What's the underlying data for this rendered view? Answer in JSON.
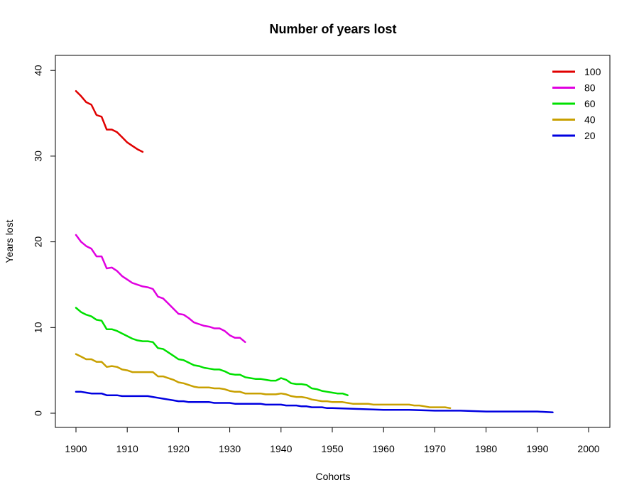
{
  "chart_data": {
    "type": "line",
    "title": "Number of years lost",
    "xlabel": "Cohorts",
    "ylabel": "Years lost",
    "xlim": [
      1900,
      2000
    ],
    "ylim": [
      0,
      40
    ],
    "x_ticks": [
      1900,
      1910,
      1920,
      1930,
      1940,
      1950,
      1960,
      1970,
      1980,
      1990,
      2000
    ],
    "y_ticks": [
      0,
      10,
      20,
      30,
      40
    ],
    "grid": false,
    "legend_position": "top-right",
    "series": [
      {
        "name": "100",
        "color": "#e00000",
        "points": [
          [
            1900,
            37.6
          ],
          [
            1901,
            37.0
          ],
          [
            1902,
            36.3
          ],
          [
            1903,
            36.0
          ],
          [
            1904,
            34.8
          ],
          [
            1905,
            34.6
          ],
          [
            1906,
            33.1
          ],
          [
            1907,
            33.1
          ],
          [
            1908,
            32.8
          ],
          [
            1909,
            32.2
          ],
          [
            1910,
            31.6
          ],
          [
            1911,
            31.2
          ],
          [
            1912,
            30.8
          ],
          [
            1913,
            30.5
          ]
        ]
      },
      {
        "name": "80",
        "color": "#e000e0",
        "points": [
          [
            1900,
            20.8
          ],
          [
            1901,
            20.0
          ],
          [
            1902,
            19.5
          ],
          [
            1903,
            19.2
          ],
          [
            1904,
            18.3
          ],
          [
            1905,
            18.3
          ],
          [
            1906,
            16.9
          ],
          [
            1907,
            17.0
          ],
          [
            1908,
            16.6
          ],
          [
            1909,
            16.0
          ],
          [
            1910,
            15.6
          ],
          [
            1911,
            15.2
          ],
          [
            1912,
            15.0
          ],
          [
            1913,
            14.8
          ],
          [
            1914,
            14.7
          ],
          [
            1915,
            14.5
          ],
          [
            1916,
            13.6
          ],
          [
            1917,
            13.4
          ],
          [
            1918,
            12.8
          ],
          [
            1919,
            12.2
          ],
          [
            1920,
            11.6
          ],
          [
            1921,
            11.5
          ],
          [
            1922,
            11.1
          ],
          [
            1923,
            10.6
          ],
          [
            1924,
            10.4
          ],
          [
            1925,
            10.2
          ],
          [
            1926,
            10.1
          ],
          [
            1927,
            9.9
          ],
          [
            1928,
            9.9
          ],
          [
            1929,
            9.6
          ],
          [
            1930,
            9.1
          ],
          [
            1931,
            8.8
          ],
          [
            1932,
            8.8
          ],
          [
            1933,
            8.3
          ]
        ]
      },
      {
        "name": "60",
        "color": "#00e000",
        "points": [
          [
            1900,
            12.3
          ],
          [
            1901,
            11.8
          ],
          [
            1902,
            11.5
          ],
          [
            1903,
            11.3
          ],
          [
            1904,
            10.9
          ],
          [
            1905,
            10.8
          ],
          [
            1906,
            9.8
          ],
          [
            1907,
            9.8
          ],
          [
            1908,
            9.6
          ],
          [
            1909,
            9.3
          ],
          [
            1910,
            9.0
          ],
          [
            1911,
            8.7
          ],
          [
            1912,
            8.5
          ],
          [
            1913,
            8.4
          ],
          [
            1914,
            8.4
          ],
          [
            1915,
            8.3
          ],
          [
            1916,
            7.6
          ],
          [
            1917,
            7.5
          ],
          [
            1918,
            7.1
          ],
          [
            1919,
            6.7
          ],
          [
            1920,
            6.3
          ],
          [
            1921,
            6.2
          ],
          [
            1922,
            5.9
          ],
          [
            1923,
            5.6
          ],
          [
            1924,
            5.5
          ],
          [
            1925,
            5.3
          ],
          [
            1926,
            5.2
          ],
          [
            1927,
            5.1
          ],
          [
            1928,
            5.1
          ],
          [
            1929,
            4.9
          ],
          [
            1930,
            4.6
          ],
          [
            1931,
            4.5
          ],
          [
            1932,
            4.5
          ],
          [
            1933,
            4.2
          ],
          [
            1934,
            4.1
          ],
          [
            1935,
            4.0
          ],
          [
            1936,
            4.0
          ],
          [
            1937,
            3.9
          ],
          [
            1938,
            3.8
          ],
          [
            1939,
            3.8
          ],
          [
            1940,
            4.1
          ],
          [
            1941,
            3.9
          ],
          [
            1942,
            3.5
          ],
          [
            1943,
            3.4
          ],
          [
            1944,
            3.4
          ],
          [
            1945,
            3.3
          ],
          [
            1946,
            2.9
          ],
          [
            1947,
            2.8
          ],
          [
            1948,
            2.6
          ],
          [
            1949,
            2.5
          ],
          [
            1950,
            2.4
          ],
          [
            1951,
            2.3
          ],
          [
            1952,
            2.3
          ],
          [
            1953,
            2.1
          ]
        ]
      },
      {
        "name": "40",
        "color": "#c8a000",
        "points": [
          [
            1900,
            6.9
          ],
          [
            1901,
            6.6
          ],
          [
            1902,
            6.3
          ],
          [
            1903,
            6.3
          ],
          [
            1904,
            6.0
          ],
          [
            1905,
            6.0
          ],
          [
            1906,
            5.4
          ],
          [
            1907,
            5.5
          ],
          [
            1908,
            5.4
          ],
          [
            1909,
            5.1
          ],
          [
            1910,
            5.0
          ],
          [
            1911,
            4.8
          ],
          [
            1912,
            4.8
          ],
          [
            1913,
            4.8
          ],
          [
            1914,
            4.8
          ],
          [
            1915,
            4.8
          ],
          [
            1916,
            4.3
          ],
          [
            1917,
            4.3
          ],
          [
            1918,
            4.1
          ],
          [
            1919,
            3.9
          ],
          [
            1920,
            3.6
          ],
          [
            1921,
            3.5
          ],
          [
            1922,
            3.3
          ],
          [
            1923,
            3.1
          ],
          [
            1924,
            3.0
          ],
          [
            1925,
            3.0
          ],
          [
            1926,
            3.0
          ],
          [
            1927,
            2.9
          ],
          [
            1928,
            2.9
          ],
          [
            1929,
            2.8
          ],
          [
            1930,
            2.6
          ],
          [
            1931,
            2.5
          ],
          [
            1932,
            2.5
          ],
          [
            1933,
            2.3
          ],
          [
            1934,
            2.3
          ],
          [
            1935,
            2.3
          ],
          [
            1936,
            2.3
          ],
          [
            1937,
            2.2
          ],
          [
            1938,
            2.2
          ],
          [
            1939,
            2.2
          ],
          [
            1940,
            2.3
          ],
          [
            1941,
            2.2
          ],
          [
            1942,
            2.0
          ],
          [
            1943,
            1.9
          ],
          [
            1944,
            1.9
          ],
          [
            1945,
            1.8
          ],
          [
            1946,
            1.6
          ],
          [
            1947,
            1.5
          ],
          [
            1948,
            1.4
          ],
          [
            1949,
            1.4
          ],
          [
            1950,
            1.3
          ],
          [
            1951,
            1.3
          ],
          [
            1952,
            1.3
          ],
          [
            1953,
            1.2
          ],
          [
            1954,
            1.1
          ],
          [
            1955,
            1.1
          ],
          [
            1956,
            1.1
          ],
          [
            1957,
            1.1
          ],
          [
            1958,
            1.0
          ],
          [
            1959,
            1.0
          ],
          [
            1960,
            1.0
          ],
          [
            1961,
            1.0
          ],
          [
            1962,
            1.0
          ],
          [
            1963,
            1.0
          ],
          [
            1964,
            1.0
          ],
          [
            1965,
            1.0
          ],
          [
            1966,
            0.9
          ],
          [
            1967,
            0.9
          ],
          [
            1968,
            0.8
          ],
          [
            1969,
            0.7
          ],
          [
            1970,
            0.7
          ],
          [
            1971,
            0.7
          ],
          [
            1972,
            0.7
          ],
          [
            1973,
            0.6
          ]
        ]
      },
      {
        "name": "20",
        "color": "#0000e0",
        "points": [
          [
            1900,
            2.5
          ],
          [
            1901,
            2.5
          ],
          [
            1902,
            2.4
          ],
          [
            1903,
            2.3
          ],
          [
            1904,
            2.3
          ],
          [
            1905,
            2.3
          ],
          [
            1906,
            2.1
          ],
          [
            1907,
            2.1
          ],
          [
            1908,
            2.1
          ],
          [
            1909,
            2.0
          ],
          [
            1910,
            2.0
          ],
          [
            1911,
            2.0
          ],
          [
            1912,
            2.0
          ],
          [
            1913,
            2.0
          ],
          [
            1914,
            2.0
          ],
          [
            1915,
            1.9
          ],
          [
            1916,
            1.8
          ],
          [
            1917,
            1.7
          ],
          [
            1918,
            1.6
          ],
          [
            1919,
            1.5
          ],
          [
            1920,
            1.4
          ],
          [
            1921,
            1.4
          ],
          [
            1922,
            1.3
          ],
          [
            1923,
            1.3
          ],
          [
            1924,
            1.3
          ],
          [
            1925,
            1.3
          ],
          [
            1926,
            1.3
          ],
          [
            1927,
            1.2
          ],
          [
            1928,
            1.2
          ],
          [
            1929,
            1.2
          ],
          [
            1930,
            1.2
          ],
          [
            1931,
            1.1
          ],
          [
            1932,
            1.1
          ],
          [
            1933,
            1.1
          ],
          [
            1934,
            1.1
          ],
          [
            1935,
            1.1
          ],
          [
            1936,
            1.1
          ],
          [
            1937,
            1.0
          ],
          [
            1938,
            1.0
          ],
          [
            1939,
            1.0
          ],
          [
            1940,
            1.0
          ],
          [
            1941,
            0.9
          ],
          [
            1942,
            0.9
          ],
          [
            1943,
            0.9
          ],
          [
            1944,
            0.8
          ],
          [
            1945,
            0.8
          ],
          [
            1946,
            0.7
          ],
          [
            1947,
            0.7
          ],
          [
            1948,
            0.7
          ],
          [
            1949,
            0.6
          ],
          [
            1950,
            0.6
          ],
          [
            1955,
            0.5
          ],
          [
            1960,
            0.4
          ],
          [
            1965,
            0.4
          ],
          [
            1970,
            0.3
          ],
          [
            1975,
            0.3
          ],
          [
            1980,
            0.2
          ],
          [
            1985,
            0.2
          ],
          [
            1990,
            0.2
          ],
          [
            1993,
            0.1
          ]
        ]
      }
    ]
  }
}
